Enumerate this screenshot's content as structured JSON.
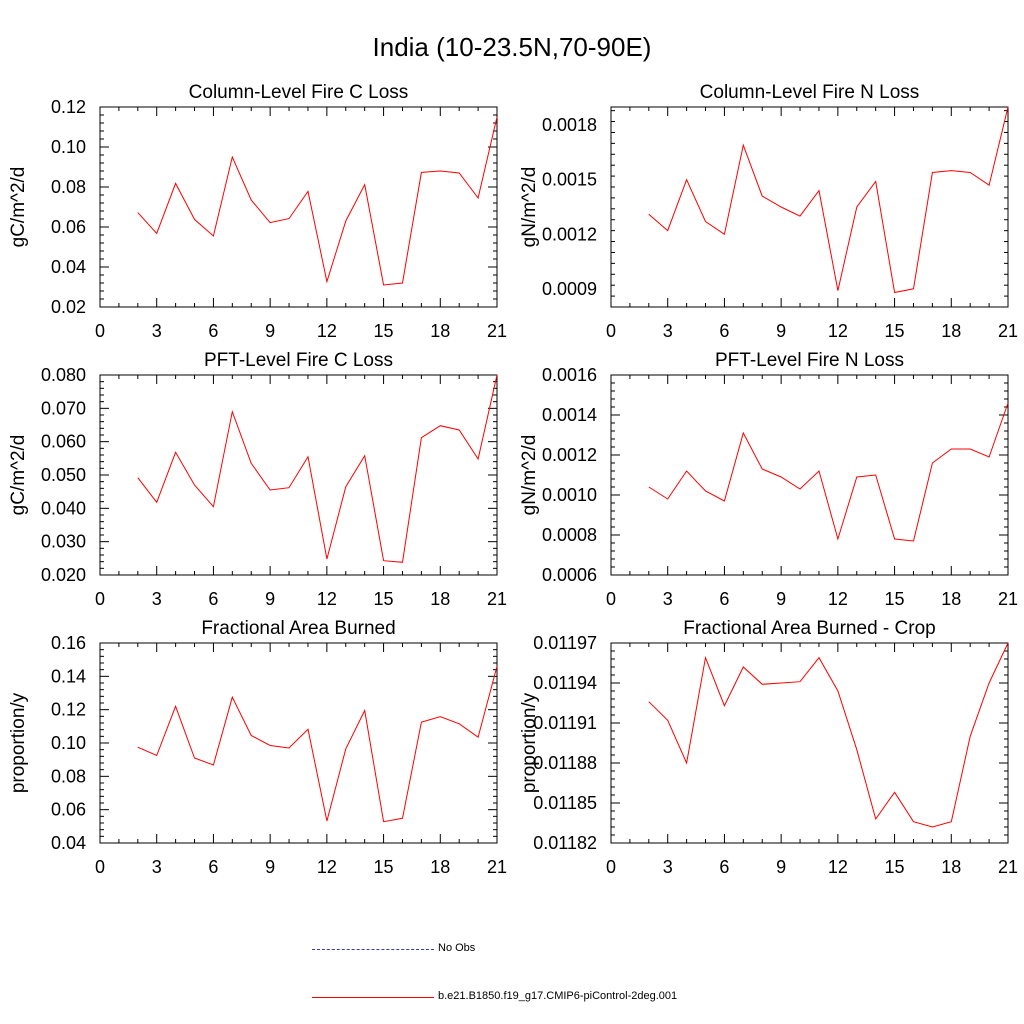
{
  "page": {
    "title": "India (10-23.5N,70-90E)"
  },
  "chart_data": [
    {
      "type": "line",
      "title": "Column-Level Fire C Loss",
      "ylabel": "gC/m^2/d",
      "xlim": [
        0,
        21
      ],
      "xticks": [
        0,
        3,
        6,
        9,
        12,
        15,
        18,
        21
      ],
      "xtick_labels": [
        "0",
        "3",
        "6",
        "9",
        "12",
        "15",
        "18",
        "21"
      ],
      "ylim": [
        0.02,
        0.12
      ],
      "yticks": [
        0.02,
        0.04,
        0.06,
        0.08,
        0.1,
        0.12
      ],
      "ytick_labels": [
        "0.02",
        "0.04",
        "0.06",
        "0.08",
        "0.10",
        "0.12"
      ],
      "color": "#ff0000",
      "x": [
        2,
        3,
        4,
        5,
        6,
        7,
        8,
        9,
        10,
        11,
        12,
        13,
        14,
        15,
        16,
        17,
        18,
        19,
        20,
        21
      ],
      "y": [
        0.0672,
        0.0568,
        0.0818,
        0.0638,
        0.0555,
        0.095,
        0.0735,
        0.0622,
        0.0642,
        0.0778,
        0.0327,
        0.063,
        0.0812,
        0.031,
        0.032,
        0.0873,
        0.088,
        0.087,
        0.0745,
        0.115
      ]
    },
    {
      "type": "line",
      "title": "Column-Level Fire N Loss",
      "ylabel": "gN/m^2/d",
      "xlim": [
        0,
        21
      ],
      "xticks": [
        0,
        3,
        6,
        9,
        12,
        15,
        18,
        21
      ],
      "xtick_labels": [
        "0",
        "3",
        "6",
        "9",
        "12",
        "15",
        "18",
        "21"
      ],
      "ylim": [
        0.0008,
        0.0019
      ],
      "yticks": [
        0.0009,
        0.0012,
        0.0015,
        0.0018
      ],
      "ytick_labels": [
        "0.0009",
        "0.0012",
        "0.0015",
        "0.0018"
      ],
      "color": "#ff0000",
      "x": [
        2,
        3,
        4,
        5,
        6,
        7,
        8,
        9,
        10,
        11,
        12,
        13,
        14,
        15,
        16,
        17,
        18,
        19,
        20,
        21
      ],
      "y": [
        0.00131,
        0.00122,
        0.0015,
        0.00127,
        0.0012,
        0.00169,
        0.00141,
        0.00135,
        0.0013,
        0.00144,
        0.00089,
        0.00135,
        0.00149,
        0.00088,
        0.0009,
        0.00154,
        0.00155,
        0.00154,
        0.00147,
        0.0019
      ]
    },
    {
      "type": "line",
      "title": "PFT-Level Fire C Loss",
      "ylabel": "gC/m^2/d",
      "xlim": [
        0,
        21
      ],
      "xticks": [
        0,
        3,
        6,
        9,
        12,
        15,
        18,
        21
      ],
      "xtick_labels": [
        "0",
        "3",
        "6",
        "9",
        "12",
        "15",
        "18",
        "21"
      ],
      "ylim": [
        0.02,
        0.08
      ],
      "yticks": [
        0.02,
        0.03,
        0.04,
        0.05,
        0.06,
        0.07,
        0.08
      ],
      "ytick_labels": [
        "0.020",
        "0.030",
        "0.040",
        "0.050",
        "0.060",
        "0.070",
        "0.080"
      ],
      "color": "#ff0000",
      "x": [
        2,
        3,
        4,
        5,
        6,
        7,
        8,
        9,
        10,
        11,
        12,
        13,
        14,
        15,
        16,
        17,
        18,
        19,
        20,
        21
      ],
      "y": [
        0.0492,
        0.0418,
        0.0568,
        0.047,
        0.0405,
        0.069,
        0.0535,
        0.0455,
        0.0462,
        0.0555,
        0.0248,
        0.0465,
        0.0558,
        0.0243,
        0.0238,
        0.0612,
        0.0648,
        0.0635,
        0.0548,
        0.08
      ]
    },
    {
      "type": "line",
      "title": "PFT-Level Fire N Loss",
      "ylabel": "gN/m^2/d",
      "xlim": [
        0,
        21
      ],
      "xticks": [
        0,
        3,
        6,
        9,
        12,
        15,
        18,
        21
      ],
      "xtick_labels": [
        "0",
        "3",
        "6",
        "9",
        "12",
        "15",
        "18",
        "21"
      ],
      "ylim": [
        0.0006,
        0.0016
      ],
      "yticks": [
        0.0006,
        0.0008,
        0.001,
        0.0012,
        0.0014,
        0.0016
      ],
      "ytick_labels": [
        "0.0006",
        "0.0008",
        "0.0010",
        "0.0012",
        "0.0014",
        "0.0016"
      ],
      "color": "#ff0000",
      "x": [
        2,
        3,
        4,
        5,
        6,
        7,
        8,
        9,
        10,
        11,
        12,
        13,
        14,
        15,
        16,
        17,
        18,
        19,
        20,
        21
      ],
      "y": [
        0.00104,
        0.00098,
        0.00112,
        0.00102,
        0.00097,
        0.00131,
        0.00113,
        0.00109,
        0.00103,
        0.00112,
        0.00078,
        0.00109,
        0.0011,
        0.00078,
        0.00077,
        0.00116,
        0.00123,
        0.00123,
        0.00119,
        0.00146
      ]
    },
    {
      "type": "line",
      "title": "Fractional Area Burned",
      "ylabel": "proportion/y",
      "xlim": [
        0,
        21
      ],
      "xticks": [
        0,
        3,
        6,
        9,
        12,
        15,
        18,
        21
      ],
      "xtick_labels": [
        "0",
        "3",
        "6",
        "9",
        "12",
        "15",
        "18",
        "21"
      ],
      "ylim": [
        0.04,
        0.16
      ],
      "yticks": [
        0.04,
        0.06,
        0.08,
        0.1,
        0.12,
        0.14,
        0.16
      ],
      "ytick_labels": [
        "0.04",
        "0.06",
        "0.08",
        "0.10",
        "0.12",
        "0.14",
        "0.16"
      ],
      "color": "#ff0000",
      "x": [
        2,
        3,
        4,
        5,
        6,
        7,
        8,
        9,
        10,
        11,
        12,
        13,
        14,
        15,
        16,
        17,
        18,
        19,
        20,
        21
      ],
      "y": [
        0.0975,
        0.0925,
        0.122,
        0.091,
        0.0868,
        0.1275,
        0.1045,
        0.0985,
        0.097,
        0.1082,
        0.0532,
        0.0965,
        0.1195,
        0.0528,
        0.0548,
        0.1125,
        0.1158,
        0.1115,
        0.1035,
        0.146
      ]
    },
    {
      "type": "line",
      "title": "Fractional Area Burned - Crop",
      "ylabel": "proportion/y",
      "xlim": [
        0,
        21
      ],
      "xticks": [
        0,
        3,
        6,
        9,
        12,
        15,
        18,
        21
      ],
      "xtick_labels": [
        "0",
        "3",
        "6",
        "9",
        "12",
        "15",
        "18",
        "21"
      ],
      "ylim": [
        0.01182,
        0.01197
      ],
      "yticks": [
        0.01182,
        0.01185,
        0.01188,
        0.01191,
        0.01194,
        0.01197
      ],
      "ytick_labels": [
        "0.01182",
        "0.01185",
        "0.01188",
        "0.01191",
        "0.01194",
        "0.01197"
      ],
      "color": "#ff0000",
      "x": [
        2,
        3,
        4,
        5,
        6,
        7,
        8,
        9,
        10,
        11,
        12,
        13,
        14,
        15,
        16,
        17,
        18,
        19,
        20,
        21
      ],
      "y": [
        0.011926,
        0.011912,
        0.01188,
        0.011959,
        0.011923,
        0.011952,
        0.011939,
        0.01194,
        0.011941,
        0.011959,
        0.011934,
        0.01189,
        0.011838,
        0.011858,
        0.011836,
        0.011832,
        0.011836,
        0.0119,
        0.01194,
        0.01197
      ]
    }
  ],
  "legend": {
    "no_obs": "No Obs",
    "model": "b.e21.B1850.f19_g17.CMIP6-piControl-2deg.001",
    "no_obs_color": "#3a3aa8",
    "model_color": "#ff0000"
  }
}
